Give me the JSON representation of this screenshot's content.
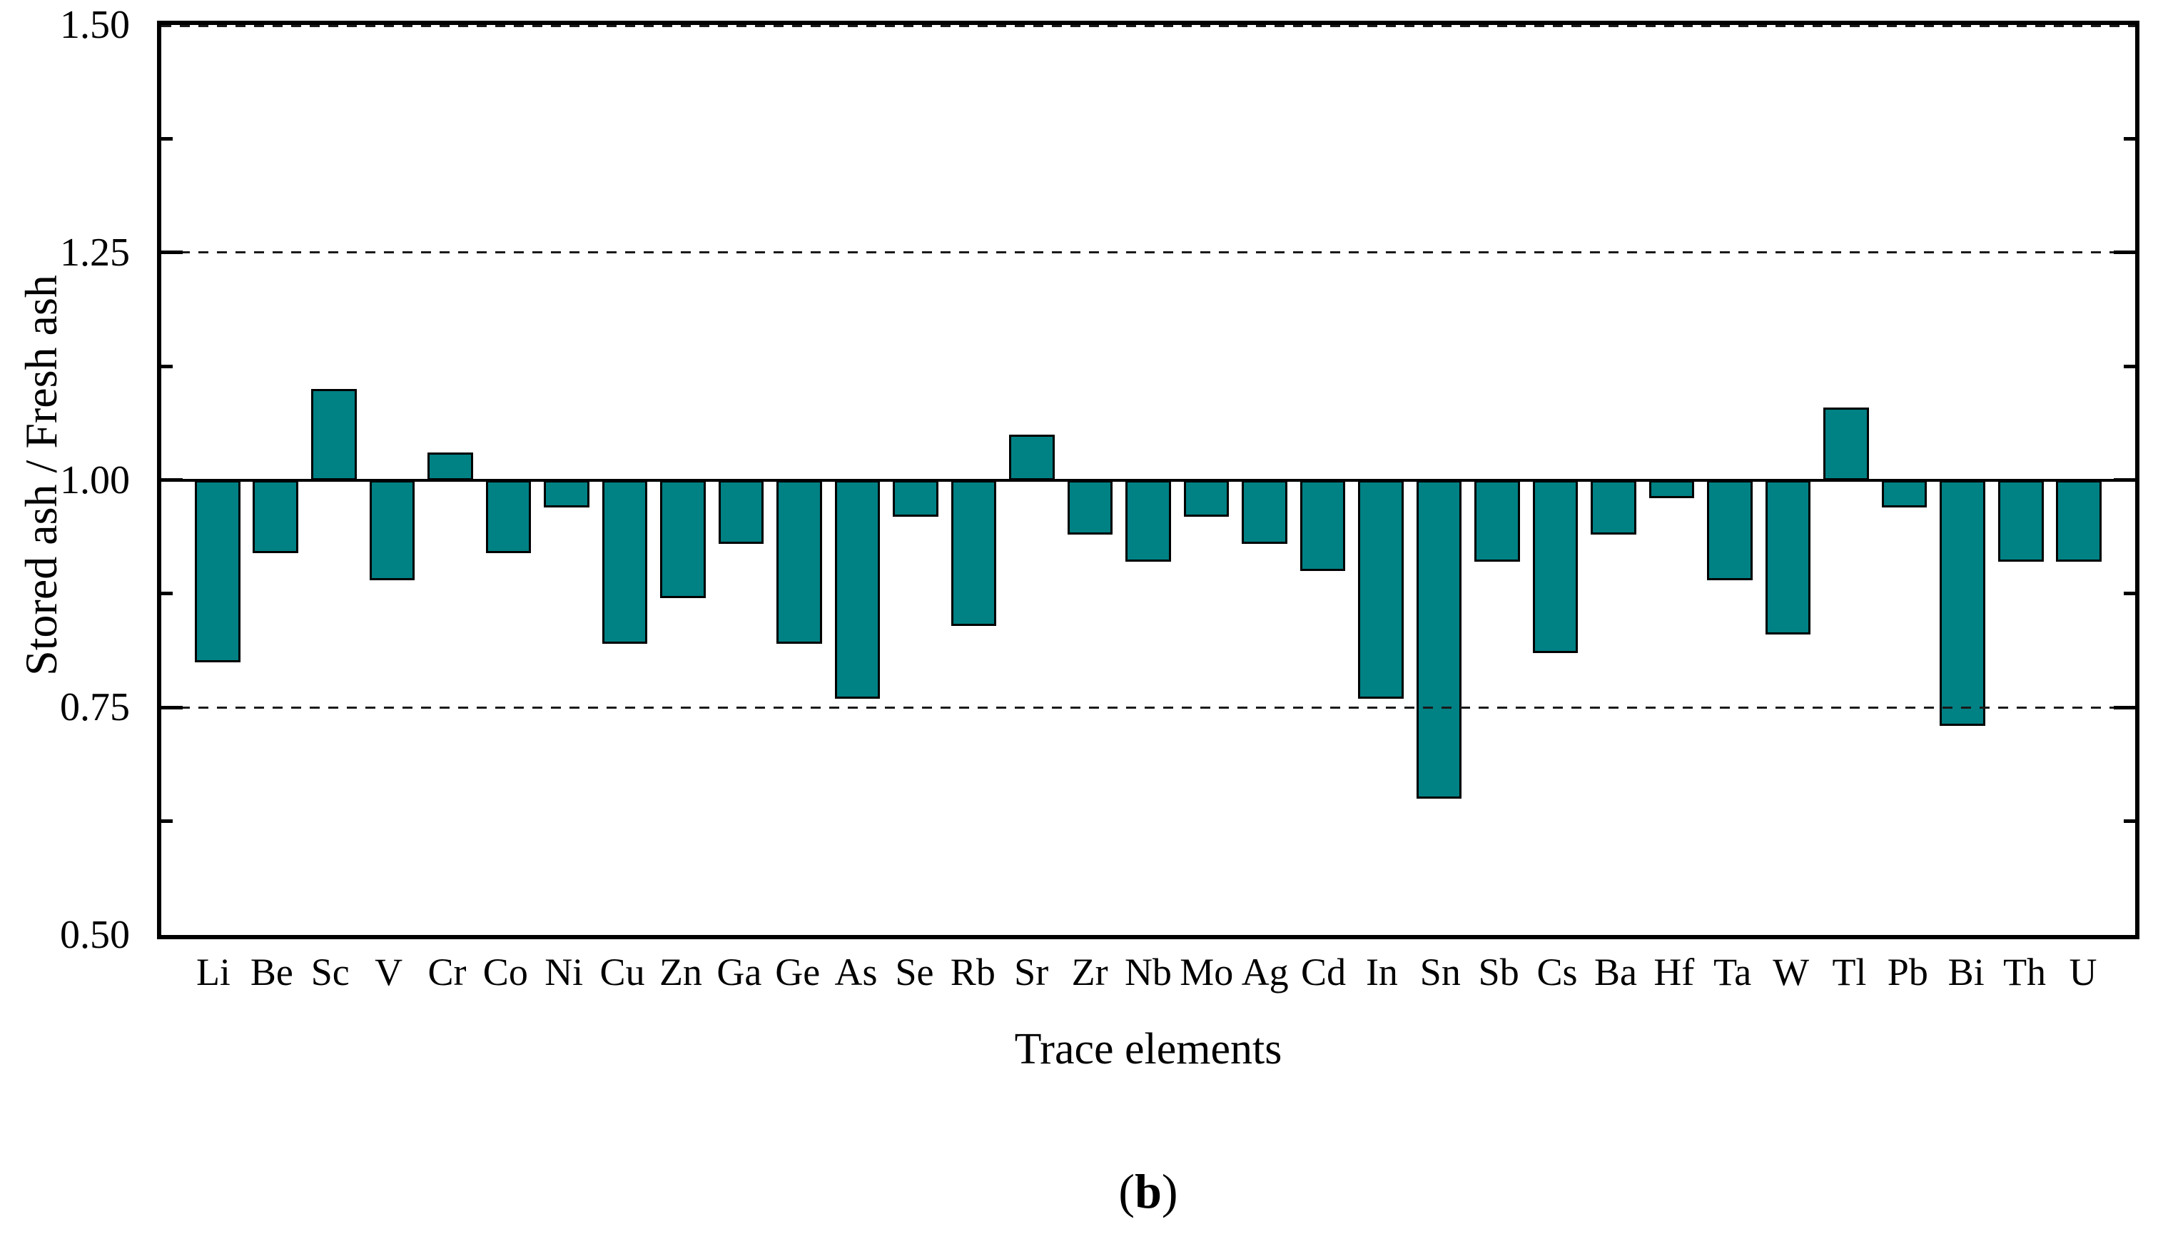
{
  "chart_data": {
    "type": "bar",
    "title": "",
    "categories": [
      "Li",
      "Be",
      "Sc",
      "V",
      "Cr",
      "Co",
      "Ni",
      "Cu",
      "Zn",
      "Ga",
      "Ge",
      "As",
      "Se",
      "Rb",
      "Sr",
      "Zr",
      "Nb",
      "Mo",
      "Ag",
      "Cd",
      "In",
      "Sn",
      "Sb",
      "Cs",
      "Ba",
      "Hf",
      "Ta",
      "W",
      "Tl",
      "Pb",
      "Bi",
      "Th",
      "U"
    ],
    "values": [
      0.8,
      0.92,
      1.1,
      0.89,
      1.03,
      0.92,
      0.97,
      0.82,
      0.87,
      0.93,
      0.82,
      0.76,
      0.96,
      0.84,
      1.05,
      0.94,
      0.91,
      0.96,
      0.93,
      0.9,
      0.76,
      0.65,
      0.91,
      0.81,
      0.94,
      0.98,
      0.89,
      0.83,
      1.08,
      0.97,
      0.73,
      0.91,
      0.91
    ],
    "xlabel": "Trace elements",
    "ylabel": "Stored ash / Fresh ash",
    "ylim": [
      0.5,
      1.5
    ],
    "baseline": 1.0,
    "yticks": [
      1.5,
      1.25,
      1.0,
      0.75,
      0.5
    ],
    "ytick_labels": [
      "1.50",
      "1.25",
      "1.00",
      "0.75",
      "0.50"
    ],
    "minor_yticks": [
      1.375,
      1.125,
      0.875,
      0.625
    ],
    "dashed_gridlines_at": [
      1.5,
      1.25,
      0.75
    ],
    "grid": "horizontal dashed",
    "legend_position": "none",
    "bar_color": "#008184",
    "bar_border_color": "#000000",
    "axis_color": "#000000"
  },
  "caption": {
    "prefix": "(",
    "letter": "b",
    "suffix": ")"
  }
}
